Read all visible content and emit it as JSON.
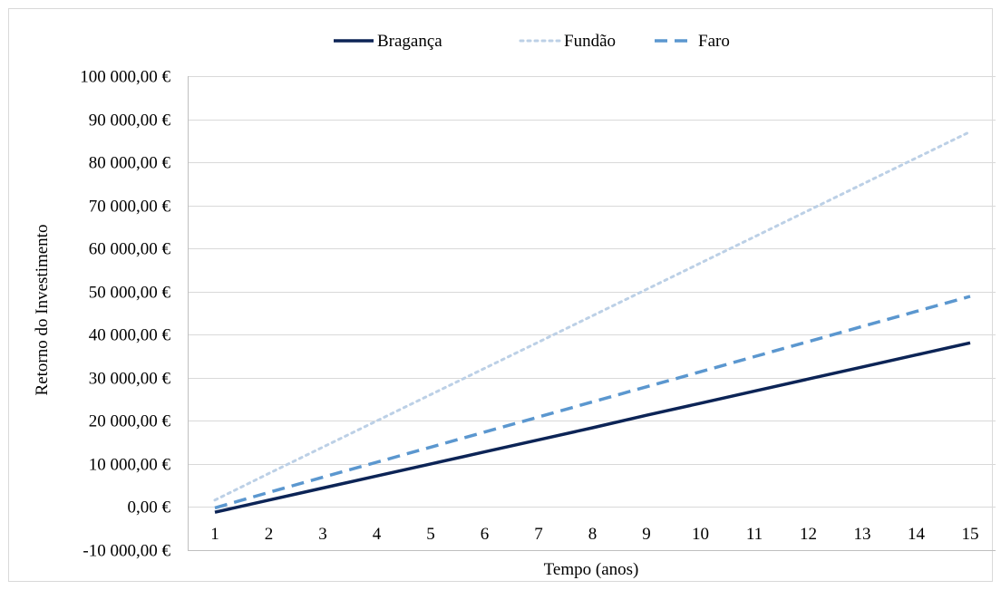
{
  "chart_data": {
    "type": "line",
    "title": "",
    "xlabel": "Tempo (anos)",
    "ylabel": "Retorno do Investimento",
    "x": [
      1,
      2,
      3,
      4,
      5,
      6,
      7,
      8,
      9,
      10,
      11,
      12,
      13,
      14,
      15
    ],
    "ylim": [
      -10000,
      100000
    ],
    "yticks": [
      -10000,
      0,
      10000,
      20000,
      30000,
      40000,
      50000,
      60000,
      70000,
      80000,
      90000,
      100000
    ],
    "ytick_labels": [
      "-10 000,00 €",
      "0,00 €",
      "10 000,00 €",
      "20 000,00 €",
      "30 000,00 €",
      "40 000,00 €",
      "50 000,00 €",
      "60 000,00 €",
      "70 000,00 €",
      "80 000,00 €",
      "90 000,00 €",
      "100 000,00 €"
    ],
    "xtick_labels": [
      "1",
      "2",
      "3",
      "4",
      "5",
      "6",
      "7",
      "8",
      "9",
      "10",
      "11",
      "12",
      "13",
      "14",
      "15"
    ],
    "grid": "horizontal",
    "legend_position": "top-center",
    "series": [
      {
        "name": "Bragança",
        "color": "#0c2456",
        "style": "solid",
        "values": [
          -1200,
          1600,
          4400,
          7200,
          10000,
          12800,
          15600,
          18400,
          21300,
          24100,
          26900,
          29700,
          32500,
          35300,
          38100
        ]
      },
      {
        "name": "Fundão",
        "color": "#bcd0e6",
        "style": "dotted",
        "values": [
          1600,
          7800,
          13900,
          20000,
          26100,
          32200,
          38300,
          44400,
          50500,
          56600,
          62700,
          68800,
          74900,
          81000,
          87100
        ]
      },
      {
        "name": "Faro",
        "color": "#5b97cf",
        "style": "dashed",
        "values": [
          -200,
          3400,
          6900,
          10400,
          13900,
          17400,
          20900,
          24400,
          27900,
          31400,
          34900,
          38400,
          41900,
          45400,
          48900
        ]
      }
    ]
  }
}
